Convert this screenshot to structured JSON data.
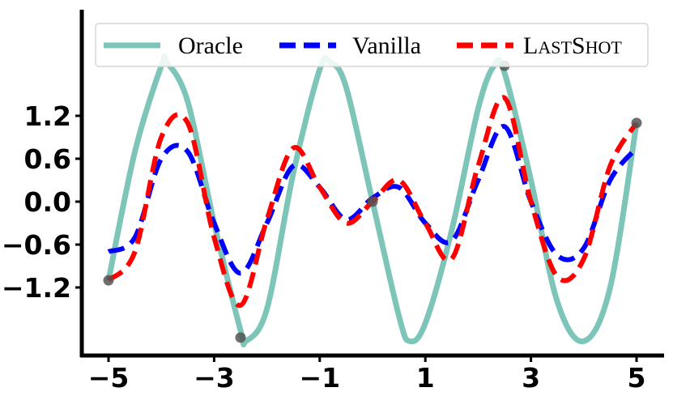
{
  "chart_data": {
    "type": "line",
    "title": "",
    "xlabel": "",
    "ylabel": "",
    "xlim": [
      -5.5,
      5.5
    ],
    "ylim": [
      -2.2,
      2.0
    ],
    "xticks": [
      -5,
      -3,
      -1,
      1,
      3,
      5
    ],
    "xtick_labels": [
      "−5",
      "−3",
      "−1",
      "1",
      "3",
      "5"
    ],
    "yticks": [
      1.2,
      0.6,
      0.0,
      -0.6,
      -1.2
    ],
    "ytick_labels": [
      "1.2",
      "0.6",
      "0.0",
      "−0.6",
      "−1.2"
    ],
    "grid": false,
    "legend_position": "top",
    "series": [
      {
        "name": "Oracle",
        "color": "#7cc5b8",
        "style": "solid",
        "x": [
          -5.0,
          -4.5,
          -4.0,
          -3.9,
          -3.5,
          -3.0,
          -2.5,
          -2.4,
          -2.0,
          -1.5,
          -1.0,
          -0.8,
          -0.5,
          0.0,
          0.5,
          0.7,
          1.0,
          1.5,
          2.0,
          2.3,
          2.5,
          3.0,
          3.5,
          4.0,
          4.5,
          5.0
        ],
        "y": [
          -1.1,
          0.7,
          1.9,
          1.95,
          1.4,
          -0.3,
          -1.8,
          -1.95,
          -1.5,
          0.4,
          1.85,
          1.95,
          1.6,
          0.0,
          -1.6,
          -1.95,
          -1.7,
          -0.4,
          1.3,
          1.9,
          1.8,
          0.3,
          -1.4,
          -1.95,
          -1.2,
          1.1
        ]
      },
      {
        "name": "Vanilla",
        "color": "#0000ff",
        "style": "dashed",
        "x": [
          -5.0,
          -4.5,
          -4.0,
          -3.5,
          -3.0,
          -2.5,
          -2.0,
          -1.5,
          -1.0,
          -0.5,
          0.0,
          0.5,
          1.0,
          1.5,
          2.0,
          2.5,
          3.0,
          3.5,
          4.0,
          4.5,
          5.0
        ],
        "y": [
          -0.7,
          -0.5,
          0.6,
          0.7,
          -0.3,
          -1.0,
          -0.3,
          0.5,
          0.2,
          -0.25,
          0.05,
          0.2,
          -0.3,
          -0.55,
          0.3,
          1.05,
          0.0,
          -0.75,
          -0.65,
          0.3,
          0.75
        ]
      },
      {
        "name": "LastShot",
        "color": "#ff0000",
        "style": "dashed",
        "x": [
          -5.0,
          -4.5,
          -4.0,
          -3.5,
          -3.0,
          -2.5,
          -2.0,
          -1.5,
          -1.0,
          -0.5,
          0.0,
          0.5,
          1.0,
          1.5,
          2.0,
          2.5,
          3.0,
          3.5,
          4.0,
          4.5,
          5.0
        ],
        "y": [
          -1.1,
          -0.7,
          0.9,
          1.1,
          -0.5,
          -1.45,
          -0.25,
          0.75,
          0.2,
          -0.3,
          0.0,
          0.3,
          -0.3,
          -0.8,
          0.5,
          1.45,
          0.0,
          -1.05,
          -0.8,
          0.5,
          1.1
        ]
      }
    ],
    "context_points": {
      "color": "#555555",
      "x": [
        -5.0,
        -2.5,
        0.0,
        2.5,
        5.0
      ],
      "y": [
        -1.1,
        -1.9,
        0.0,
        1.9,
        1.1
      ]
    }
  }
}
